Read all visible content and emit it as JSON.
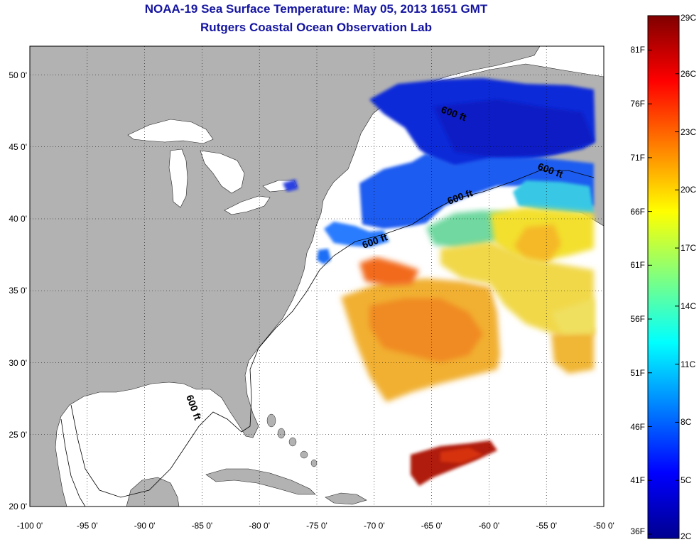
{
  "title": "NOAA-19 Sea Surface Temperature:  May 05, 2013 1651 GMT",
  "subtitle": "Rutgers Coastal Ocean Observation Lab",
  "colors": {
    "land": "#b2b2b2",
    "ocean": "#ffffff",
    "title": "#1414a0",
    "gridline": "#000000"
  },
  "map": {
    "lon_range": [
      -100,
      -50
    ],
    "lat_range": [
      20,
      52
    ],
    "grid": "dotted"
  },
  "lat_ticks": [
    {
      "value": 50,
      "label": "50 0'"
    },
    {
      "value": 45,
      "label": "45 0'"
    },
    {
      "value": 40,
      "label": "40 0'"
    },
    {
      "value": 35,
      "label": "35 0'"
    },
    {
      "value": 30,
      "label": "30 0'"
    },
    {
      "value": 25,
      "label": "25 0'"
    },
    {
      "value": 20,
      "label": "20 0'"
    }
  ],
  "lon_ticks": [
    {
      "value": -100,
      "label": "-100 0'"
    },
    {
      "value": -95,
      "label": "-95 0'"
    },
    {
      "value": -90,
      "label": "-90 0'"
    },
    {
      "value": -85,
      "label": "-85 0'"
    },
    {
      "value": -80,
      "label": "-80 0'"
    },
    {
      "value": -75,
      "label": "-75 0'"
    },
    {
      "value": -70,
      "label": "-70 0'"
    },
    {
      "value": -65,
      "label": "-65 0'"
    },
    {
      "value": -60,
      "label": "-60 0'"
    },
    {
      "value": -55,
      "label": "-55 0'"
    },
    {
      "value": -50,
      "label": "-50 0'"
    }
  ],
  "isobath_label": "600 ft",
  "colorbar": {
    "celsius_range": [
      2,
      29
    ],
    "fahrenheit_labels": [
      "36F",
      "41F",
      "46F",
      "51F",
      "56F",
      "61F",
      "66F",
      "71F",
      "76F",
      "81F"
    ],
    "celsius_labels": [
      "2C",
      "5C",
      "8C",
      "11C",
      "14C",
      "17C",
      "20C",
      "23C",
      "26C",
      "29C"
    ]
  }
}
